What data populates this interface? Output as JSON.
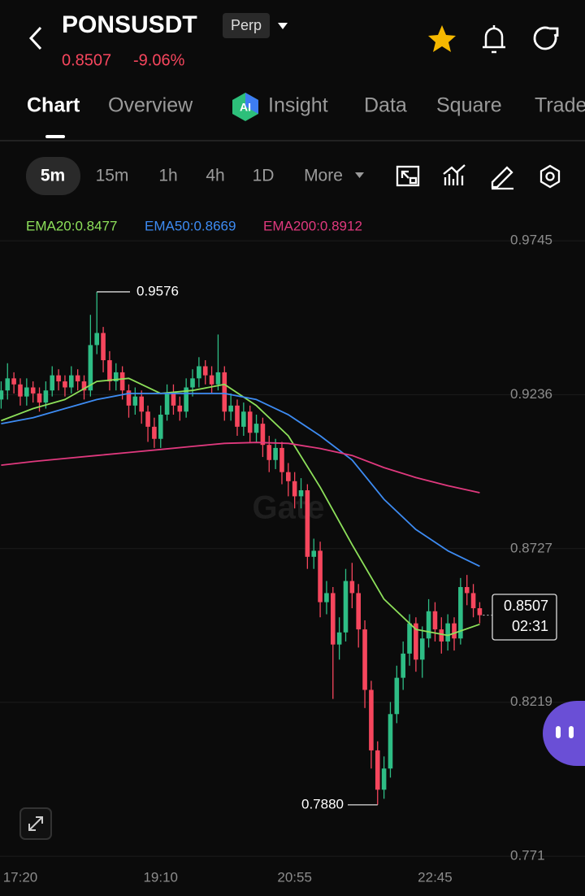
{
  "header": {
    "title": "PONSUSDT",
    "badge": "Perp",
    "price": "0.8507",
    "change": "-9.06%"
  },
  "tabs": [
    "Chart",
    "Overview",
    "Insight",
    "Data",
    "Square",
    "Trade"
  ],
  "intervals": [
    "5m",
    "15m",
    "1h",
    "4h",
    "1D",
    "More"
  ],
  "chart_data": {
    "type": "candlestick",
    "watermark": "Gate",
    "up_color": "#2ebd85",
    "down_color": "#f6465d",
    "ylim": [
      0.7678,
      0.9842
    ],
    "yticks": [
      0.9745,
      0.9236,
      0.8727,
      0.8219,
      0.771
    ],
    "xlim": [
      -0.18,
      91.5
    ],
    "xticks": [
      {
        "value": 3,
        "label": "17:20"
      },
      {
        "value": 25,
        "label": "19:10"
      },
      {
        "value": 46,
        "label": "20:55"
      },
      {
        "value": 68,
        "label": "22:45"
      }
    ],
    "open": [
      0.922,
      0.925,
      0.929,
      0.927,
      0.923,
      0.926,
      0.924,
      0.921,
      0.925,
      0.93,
      0.928,
      0.926,
      0.93,
      0.928,
      0.925,
      0.94,
      0.944,
      0.935,
      0.928,
      0.931,
      0.925,
      0.92,
      0.923,
      0.918,
      0.913,
      0.909,
      0.917,
      0.924,
      0.92,
      0.918,
      0.926,
      0.929,
      0.933,
      0.93,
      0.927,
      0.931,
      0.918,
      0.92,
      0.913,
      0.918,
      0.911,
      0.914,
      0.907,
      0.902,
      0.906,
      0.898,
      0.895,
      0.89,
      0.892,
      0.87,
      0.872,
      0.855,
      0.858,
      0.841,
      0.845,
      0.862,
      0.858,
      0.846,
      0.826,
      0.806,
      0.793,
      0.8,
      0.818,
      0.83,
      0.838,
      0.848,
      0.836,
      0.843,
      0.852,
      0.846,
      0.842,
      0.848,
      0.843,
      0.86,
      0.858,
      0.853
    ],
    "high": [
      0.928,
      0.934,
      0.931,
      0.929,
      0.929,
      0.928,
      0.926,
      0.928,
      0.933,
      0.932,
      0.93,
      0.933,
      0.932,
      0.93,
      0.95,
      0.9576,
      0.946,
      0.938,
      0.934,
      0.933,
      0.927,
      0.926,
      0.925,
      0.92,
      0.916,
      0.92,
      0.927,
      0.927,
      0.923,
      0.929,
      0.932,
      0.936,
      0.935,
      0.933,
      0.9435,
      0.933,
      0.924,
      0.922,
      0.921,
      0.92,
      0.917,
      0.916,
      0.91,
      0.909,
      0.908,
      0.901,
      0.898,
      0.896,
      0.894,
      0.876,
      0.875,
      0.862,
      0.86,
      0.85,
      0.866,
      0.868,
      0.861,
      0.849,
      0.829,
      0.809,
      0.804,
      0.822,
      0.834,
      0.842,
      0.851,
      0.85,
      0.847,
      0.856,
      0.855,
      0.85,
      0.851,
      0.85,
      0.863,
      0.864,
      0.861,
      0.855
    ],
    "low": [
      0.919,
      0.922,
      0.924,
      0.92,
      0.92,
      0.921,
      0.918,
      0.919,
      0.923,
      0.925,
      0.923,
      0.924,
      0.925,
      0.922,
      0.923,
      0.937,
      0.931,
      0.925,
      0.925,
      0.922,
      0.916,
      0.917,
      0.914,
      0.908,
      0.906,
      0.906,
      0.915,
      0.917,
      0.915,
      0.916,
      0.923,
      0.926,
      0.927,
      0.924,
      0.925,
      0.915,
      0.915,
      0.91,
      0.91,
      0.908,
      0.908,
      0.903,
      0.898,
      0.899,
      0.894,
      0.89,
      0.886,
      0.886,
      0.866,
      0.866,
      0.85,
      0.851,
      0.823,
      0.836,
      0.842,
      0.853,
      0.84,
      0.82,
      0.8,
      0.788,
      0.79,
      0.797,
      0.815,
      0.826,
      0.834,
      0.832,
      0.83,
      0.84,
      0.842,
      0.838,
      0.839,
      0.839,
      0.841,
      0.854,
      0.85,
      0.848
    ],
    "close": [
      0.925,
      0.929,
      0.927,
      0.923,
      0.926,
      0.924,
      0.921,
      0.925,
      0.93,
      0.928,
      0.926,
      0.93,
      0.928,
      0.925,
      0.94,
      0.944,
      0.935,
      0.928,
      0.931,
      0.925,
      0.92,
      0.923,
      0.918,
      0.913,
      0.909,
      0.917,
      0.924,
      0.92,
      0.918,
      0.926,
      0.929,
      0.933,
      0.93,
      0.927,
      0.931,
      0.918,
      0.92,
      0.913,
      0.918,
      0.911,
      0.914,
      0.907,
      0.902,
      0.906,
      0.898,
      0.895,
      0.89,
      0.892,
      0.87,
      0.872,
      0.855,
      0.858,
      0.841,
      0.845,
      0.862,
      0.858,
      0.846,
      0.826,
      0.806,
      0.793,
      0.8,
      0.818,
      0.83,
      0.838,
      0.848,
      0.836,
      0.843,
      0.852,
      0.846,
      0.842,
      0.848,
      0.843,
      0.86,
      0.858,
      0.853,
      0.8507
    ],
    "high_index": 15,
    "low_index": 59,
    "low_label": "0.7880",
    "countdown": "02:31",
    "series": [
      {
        "name": "EMA20:0.8477",
        "color": "#8de05a",
        "x": [
          0,
          5,
          10,
          15,
          20,
          25,
          30,
          35,
          40,
          45,
          50,
          55,
          60,
          65,
          70,
          75
        ],
        "values": [
          0.915,
          0.919,
          0.922,
          0.928,
          0.929,
          0.924,
          0.925,
          0.927,
          0.92,
          0.91,
          0.893,
          0.874,
          0.856,
          0.846,
          0.844,
          0.8477
        ]
      },
      {
        "name": "EMA50:0.8669",
        "color": "#3d8bf2",
        "x": [
          0,
          5,
          10,
          15,
          20,
          25,
          30,
          35,
          40,
          45,
          50,
          55,
          60,
          65,
          70,
          75
        ],
        "values": [
          0.914,
          0.916,
          0.919,
          0.922,
          0.924,
          0.924,
          0.924,
          0.924,
          0.922,
          0.917,
          0.91,
          0.902,
          0.889,
          0.879,
          0.872,
          0.8669
        ]
      },
      {
        "name": "EMA200:0.8912",
        "color": "#e0397e",
        "x": [
          0,
          5,
          10,
          15,
          20,
          25,
          30,
          35,
          40,
          45,
          50,
          55,
          60,
          65,
          70,
          75
        ],
        "values": [
          0.9003,
          0.9015,
          0.9025,
          0.9035,
          0.9045,
          0.9055,
          0.9065,
          0.9075,
          0.9078,
          0.9075,
          0.9058,
          0.9035,
          0.8995,
          0.8962,
          0.8935,
          0.8912
        ]
      }
    ]
  }
}
